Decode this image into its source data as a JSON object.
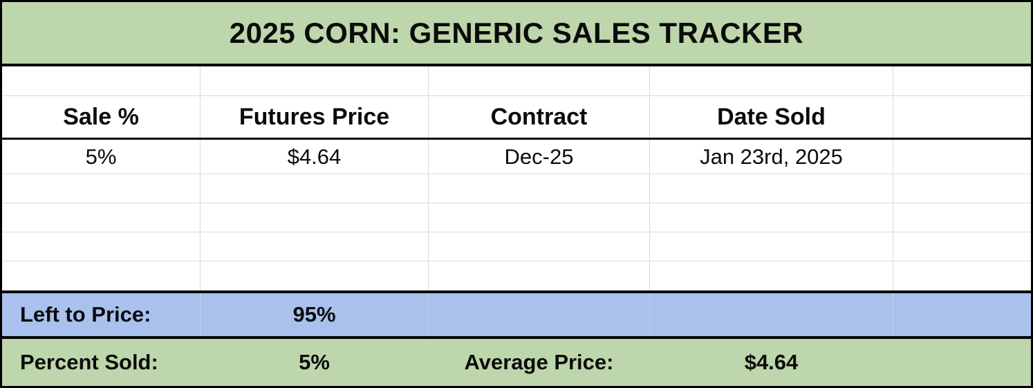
{
  "table": {
    "title": "2025 CORN: GENERIC SALES TRACKER",
    "columns": {
      "sale_pct": "Sale %",
      "futures_price": "Futures Price",
      "contract": "Contract",
      "date_sold": "Date Sold"
    },
    "rows": [
      {
        "sale_pct": "5%",
        "futures_price": "$4.64",
        "contract": "Dec-25",
        "date_sold": "Jan 23rd, 2025"
      }
    ],
    "empty_row_count": 4,
    "summary": {
      "left_to_price_label": "Left to Price:",
      "left_to_price_value": "95%",
      "percent_sold_label": "Percent Sold:",
      "percent_sold_value": "5%",
      "average_price_label": "Average Price:",
      "average_price_value": "$4.64"
    },
    "colors": {
      "banner_green": "#bdd6ab",
      "summary_blue": "#a9c1ec",
      "gridline_gray": "#d9d9d9",
      "border_black": "#000000",
      "text_black": "#0b0b0b"
    }
  }
}
